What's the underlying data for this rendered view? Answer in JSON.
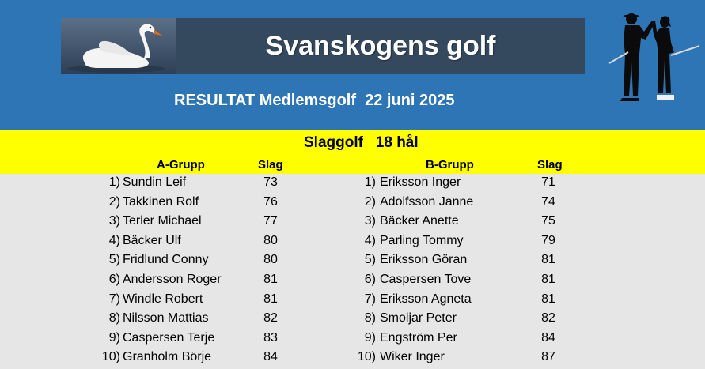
{
  "header": {
    "title": "Svanskogens golf",
    "result_line": "RESULTAT Medlemsgolf  22 juni 2025",
    "swan_image": "swan-photo",
    "golfers_image": "golfers-silhouette-icon"
  },
  "competition": {
    "title": "Slaggolf   18 hål"
  },
  "groups": [
    {
      "name": "A-Grupp",
      "score_label": "Slag",
      "players": [
        {
          "rank": "1)",
          "name": "Sundin Leif",
          "score": "73"
        },
        {
          "rank": "2)",
          "name": "Takkinen Rolf",
          "score": "76"
        },
        {
          "rank": "3)",
          "name": "Terler Michael",
          "score": "77"
        },
        {
          "rank": "4)",
          "name": "Bäcker Ulf",
          "score": "80"
        },
        {
          "rank": "5)",
          "name": "Fridlund Conny",
          "score": "80"
        },
        {
          "rank": "6)",
          "name": "Andersson Roger",
          "score": "81"
        },
        {
          "rank": "7)",
          "name": "Windle Robert",
          "score": "81"
        },
        {
          "rank": "8)",
          "name": "Nilsson Mattias",
          "score": "82"
        },
        {
          "rank": "9)",
          "name": "Caspersen Terje",
          "score": "83"
        },
        {
          "rank": "10)",
          "name": "Granholm Börje",
          "score": "84"
        }
      ]
    },
    {
      "name": "B-Grupp",
      "score_label": "Slag",
      "players": [
        {
          "rank": "1)",
          "name": "Eriksson Inger",
          "score": "71"
        },
        {
          "rank": "2)",
          "name": "Adolfsson Janne",
          "score": "74"
        },
        {
          "rank": "3)",
          "name": "Bäcker Anette",
          "score": "75"
        },
        {
          "rank": "4)",
          "name": "Parling Tommy",
          "score": "79"
        },
        {
          "rank": "5)",
          "name": "Eriksson Göran",
          "score": "81"
        },
        {
          "rank": "6)",
          "name": "Caspersen Tove",
          "score": "81"
        },
        {
          "rank": "7)",
          "name": "Eriksson Agneta",
          "score": "81"
        },
        {
          "rank": "8)",
          "name": "Smoljar Peter",
          "score": "82"
        },
        {
          "rank": "9)",
          "name": "Engström Per",
          "score": "84"
        },
        {
          "rank": "10)",
          "name": "Wiker Inger",
          "score": "87"
        }
      ]
    }
  ]
}
